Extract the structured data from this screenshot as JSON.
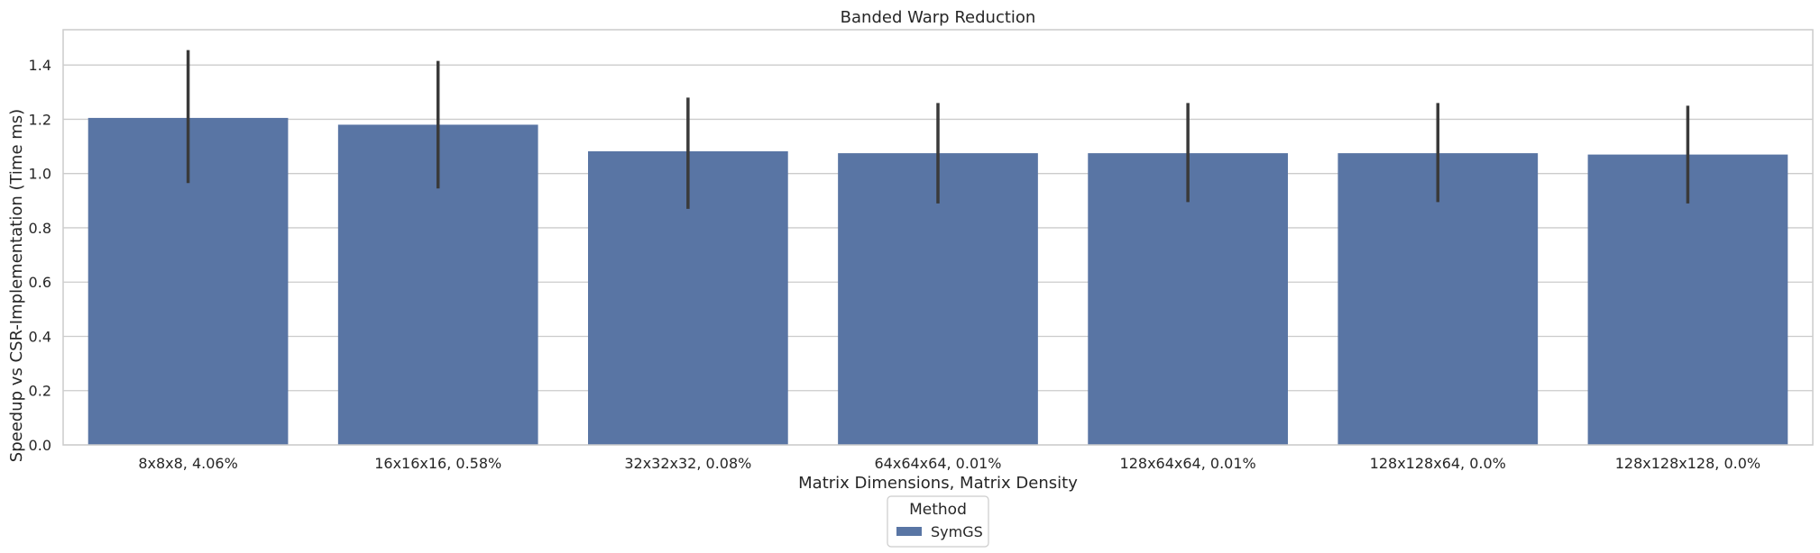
{
  "chart_data": {
    "type": "bar",
    "title": "Banded Warp Reduction",
    "xlabel": "Matrix Dimensions, Matrix Density",
    "ylabel": "Speedup vs CSR-Implementation (Time ms)",
    "categories": [
      "8x8x8, 4.06%",
      "16x16x16, 0.58%",
      "32x32x32, 0.08%",
      "64x64x64, 0.01%",
      "128x64x64, 0.01%",
      "128x128x64, 0.0%",
      "128x128x128, 0.0%"
    ],
    "series": [
      {
        "name": "SymGS",
        "color": "#5975a4",
        "values": [
          1.205,
          1.18,
          1.082,
          1.075,
          1.075,
          1.075,
          1.07
        ],
        "error_low": [
          0.965,
          0.945,
          0.87,
          0.89,
          0.895,
          0.895,
          0.89
        ],
        "error_high": [
          1.455,
          1.415,
          1.28,
          1.26,
          1.26,
          1.26,
          1.25
        ]
      }
    ],
    "ylim": [
      0,
      1.53
    ],
    "yticks": [
      0.0,
      0.2,
      0.4,
      0.6,
      0.8,
      1.0,
      1.2,
      1.4
    ],
    "ytick_labels": [
      "0.0",
      "0.2",
      "0.4",
      "0.6",
      "0.8",
      "1.0",
      "1.2",
      "1.4"
    ],
    "grid": true,
    "legend": {
      "title": "Method",
      "position": "bottom-center"
    }
  }
}
